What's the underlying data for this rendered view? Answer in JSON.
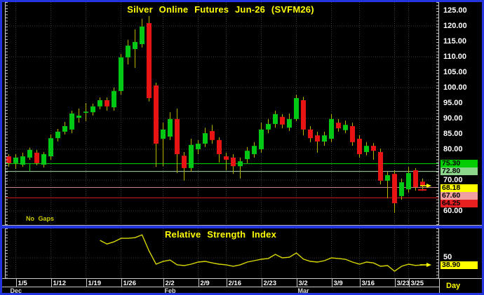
{
  "colors": {
    "frame_blue": "#2235DE",
    "background": "#000000",
    "grid": "#3A3A3A",
    "axis_line": "#C8C8C8",
    "candle_up": "#00C814",
    "candle_down": "#E81414",
    "wick": "#B4B400",
    "accent_yellow": "#FFFF00",
    "rsi_line": "#D8D800",
    "text_white": "#FFFFFF"
  },
  "date_axis": {
    "ticks": [
      {
        "label": "1/5",
        "index": 1
      },
      {
        "label": "1/12",
        "index": 6
      },
      {
        "label": "1/19",
        "index": 11
      },
      {
        "label": "1/26",
        "index": 16
      },
      {
        "label": "2/2",
        "index": 22
      },
      {
        "label": "2/9",
        "index": 27
      },
      {
        "label": "2/16",
        "index": 31
      },
      {
        "label": "2/23",
        "index": 36
      },
      {
        "label": "3/2",
        "index": 41
      },
      {
        "label": "3/9",
        "index": 46
      },
      {
        "label": "3/16",
        "index": 50
      },
      {
        "label": "3/23",
        "index": 55
      },
      {
        "label": "3/25",
        "index": 57
      }
    ],
    "months": [
      {
        "label": "Dec",
        "index": 0
      },
      {
        "label": "Feb",
        "index": 22
      },
      {
        "label": "Mar",
        "index": 41
      }
    ],
    "period_label": "Day"
  },
  "chart_data": [
    {
      "type": "candlestick",
      "title": "Silver Online Futures Jun-26 (SVFM26)",
      "mode_label": "No Gaps",
      "ylim": [
        58,
        128
      ],
      "grid": true,
      "y_axis_tick_labels": [
        {
          "label": "125.00",
          "value": 125
        },
        {
          "label": "120.00",
          "value": 120
        },
        {
          "label": "115.00",
          "value": 115
        },
        {
          "label": "110.00",
          "value": 110
        },
        {
          "label": "105.00",
          "value": 105
        },
        {
          "label": "100.00",
          "value": 100
        },
        {
          "label": "95.00",
          "value": 95
        },
        {
          "label": "90.00",
          "value": 90
        },
        {
          "label": "85.00",
          "value": 85
        },
        {
          "label": "80.00",
          "value": 80
        },
        {
          "label": "70.00",
          "value": 70
        },
        {
          "label": "60.00",
          "value": 60
        }
      ],
      "level_lines": [
        {
          "label": "75.30",
          "value": 75.3,
          "line_color": "#00DC00",
          "badge_bg": "#00CC00"
        },
        {
          "label": "72.80",
          "value": 72.8,
          "line_color": "#A8D8A8",
          "badge_bg": "#8CD68C"
        },
        {
          "label": "67.60",
          "value": 67.6,
          "line_color": "#C88888",
          "badge_bg": "#F0A0A0"
        },
        {
          "label": "64.25",
          "value": 64.25,
          "line_color": "#E02020",
          "badge_bg": "#E82020"
        }
      ],
      "zone_connector": {
        "index": 3,
        "from": 75.3,
        "to": 72.8,
        "color": "#00DC00"
      },
      "last_price": {
        "label": "68.18",
        "value": 68.18,
        "badge_bg": "#FFFF00"
      },
      "candles_ohlc": [
        [
          77.7,
          78.4,
          74.3,
          75.5
        ],
        [
          75.5,
          78.4,
          73.6,
          77.3
        ],
        [
          75.0,
          78.9,
          74.3,
          77.7
        ],
        [
          77.3,
          80.5,
          76.6,
          79.8
        ],
        [
          78.9,
          79.8,
          74.8,
          75.5
        ],
        [
          75.0,
          79.1,
          74.1,
          78.4
        ],
        [
          77.7,
          84.8,
          76.6,
          83.6
        ],
        [
          83.6,
          86.6,
          82.5,
          85.7
        ],
        [
          85.7,
          88.9,
          84.8,
          87.5
        ],
        [
          86.4,
          92.5,
          85.2,
          91.6
        ],
        [
          90.2,
          93.2,
          88.6,
          90.9
        ],
        [
          91.8,
          95.0,
          89.1,
          92.2
        ],
        [
          92.0,
          94.8,
          90.9,
          93.9
        ],
        [
          93.9,
          96.8,
          93.0,
          95.9
        ],
        [
          95.9,
          96.8,
          92.5,
          93.9
        ],
        [
          93.6,
          100.0,
          92.5,
          98.9
        ],
        [
          98.9,
          110.9,
          97.7,
          109.8
        ],
        [
          109.8,
          115.5,
          107.5,
          113.6
        ],
        [
          112.5,
          118.9,
          106.4,
          114.8
        ],
        [
          114.1,
          122.3,
          113.0,
          119.8
        ],
        [
          120.9,
          123.2,
          95.5,
          96.6
        ],
        [
          100.7,
          101.6,
          74.3,
          81.8
        ],
        [
          83.4,
          88.6,
          74.5,
          86.4
        ],
        [
          84.1,
          92.0,
          83.0,
          89.8
        ],
        [
          89.8,
          93.2,
          72.3,
          78.4
        ],
        [
          77.9,
          79.1,
          69.8,
          73.9
        ],
        [
          73.9,
          83.4,
          72.7,
          81.4
        ],
        [
          80.0,
          83.0,
          78.4,
          81.8
        ],
        [
          81.8,
          87.0,
          80.7,
          85.2
        ],
        [
          85.9,
          87.9,
          81.8,
          83.0
        ],
        [
          83.0,
          83.9,
          75.7,
          78.4
        ],
        [
          77.7,
          78.9,
          73.2,
          76.6
        ],
        [
          77.3,
          78.4,
          72.0,
          74.5
        ],
        [
          74.5,
          77.3,
          70.5,
          76.1
        ],
        [
          76.8,
          80.7,
          75.5,
          79.5
        ],
        [
          78.4,
          82.3,
          77.3,
          81.1
        ],
        [
          80.0,
          88.6,
          78.9,
          86.4
        ],
        [
          86.4,
          89.8,
          85.2,
          88.2
        ],
        [
          88.2,
          92.5,
          87.0,
          91.4
        ],
        [
          90.5,
          91.4,
          86.8,
          88.0
        ],
        [
          87.0,
          91.6,
          85.9,
          89.8
        ],
        [
          89.8,
          97.7,
          89.1,
          96.6
        ],
        [
          95.9,
          97.0,
          84.5,
          86.4
        ],
        [
          86.4,
          87.5,
          82.3,
          83.6
        ],
        [
          84.5,
          85.7,
          78.9,
          82.5
        ],
        [
          82.5,
          85.7,
          81.1,
          84.5
        ],
        [
          83.4,
          91.4,
          82.3,
          89.8
        ],
        [
          88.6,
          89.8,
          85.7,
          86.8
        ],
        [
          86.2,
          89.3,
          85.2,
          87.9
        ],
        [
          87.5,
          88.6,
          81.1,
          82.3
        ],
        [
          83.4,
          84.5,
          77.3,
          78.4
        ],
        [
          79.1,
          82.3,
          78.0,
          81.1
        ],
        [
          81.1,
          82.0,
          76.6,
          79.5
        ],
        [
          79.1,
          80.2,
          68.6,
          69.8
        ],
        [
          69.8,
          72.7,
          64.1,
          71.6
        ],
        [
          72.0,
          73.2,
          59.4,
          62.5
        ],
        [
          64.8,
          70.5,
          63.6,
          69.3
        ],
        [
          67.0,
          74.3,
          65.9,
          72.3
        ],
        [
          73.2,
          73.9,
          66.6,
          67.7
        ],
        [
          69.5,
          70.5,
          66.5,
          68.2
        ]
      ]
    },
    {
      "type": "line",
      "title": "Relative Strength Index",
      "start_index": 13,
      "values": [
        77.8,
        72,
        75.5,
        81,
        81,
        82,
        86.5,
        61,
        40,
        44.5,
        46.5,
        39,
        37.8,
        40,
        43.3,
        44.5,
        42,
        40,
        39,
        36.7,
        39,
        43.3,
        45.5,
        47.8,
        49,
        55.5,
        50,
        51,
        57.8,
        48,
        44.5,
        43.3,
        45.5,
        50,
        49,
        47.8,
        43.3,
        40,
        43.3,
        42,
        36.7,
        37.8,
        28.9,
        36.7,
        40,
        38,
        38.9
      ],
      "y_axis_gridline": {
        "label": "50",
        "value": 50
      },
      "last_value": {
        "label": "38.90",
        "value": 38.9,
        "badge_bg": "#FFFF00"
      },
      "line_color": "#D8D800"
    }
  ]
}
